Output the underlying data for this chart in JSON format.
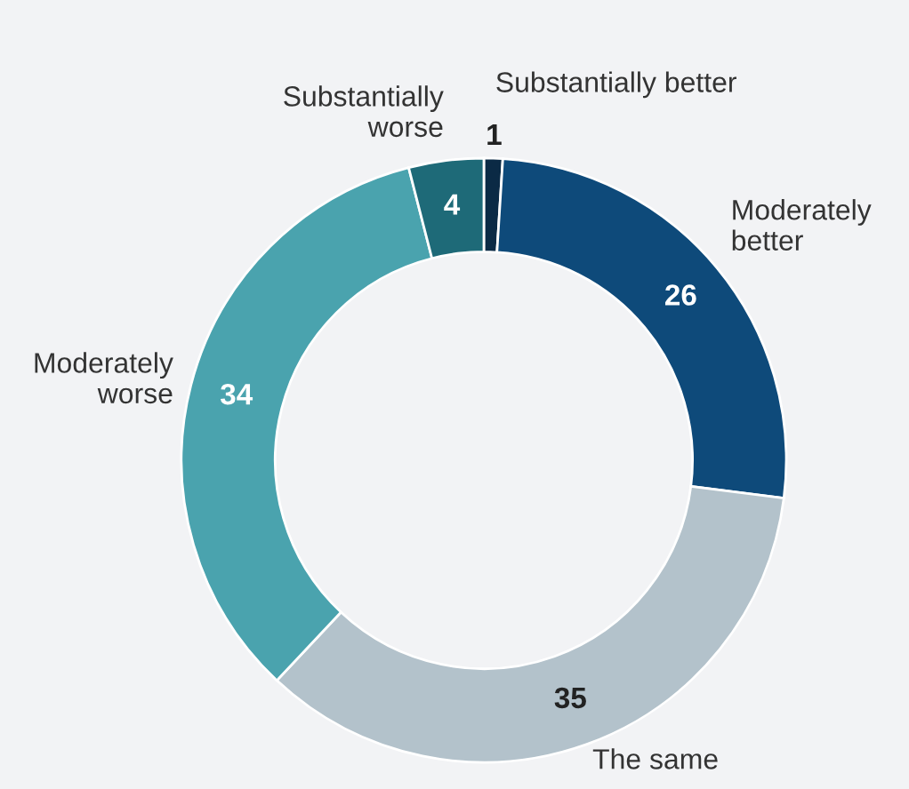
{
  "chart_data": {
    "type": "donut",
    "categories": [
      "Substantially better",
      "Moderately\nbetter",
      "The same",
      "Moderately\nworse",
      "Substantially\nworse"
    ],
    "values": [
      1,
      26,
      35,
      34,
      4
    ],
    "colors": [
      "#0b2a45",
      "#0e4a7a",
      "#b3c2cb",
      "#4aa3ae",
      "#1e6a78"
    ],
    "data_labels": true
  }
}
